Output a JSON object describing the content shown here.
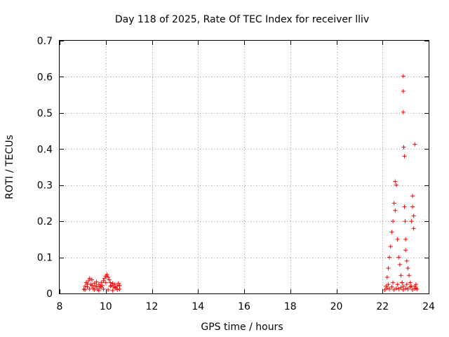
{
  "chart_data": {
    "type": "scatter",
    "title": "Day 118 of 2025, Rate Of TEC Index for receiver lliv",
    "xlabel": "GPS time / hours",
    "ylabel": "ROTI / TECUs",
    "xlim": [
      8,
      24
    ],
    "ylim": [
      0,
      0.7
    ],
    "xticks": [
      8,
      10,
      12,
      14,
      16,
      18,
      20,
      22,
      24
    ],
    "yticks": [
      0,
      0.1,
      0.2,
      0.3,
      0.4,
      0.5,
      0.6,
      0.7
    ],
    "grid": true,
    "marker": "plus",
    "color": "#ff0000",
    "series": [
      {
        "points": [
          [
            9.05,
            0.012
          ],
          [
            9.1,
            0.02
          ],
          [
            9.15,
            0.03
          ],
          [
            9.2,
            0.018
          ],
          [
            9.25,
            0.035
          ],
          [
            9.3,
            0.042
          ],
          [
            9.35,
            0.025
          ],
          [
            9.4,
            0.038
          ],
          [
            9.45,
            0.015
          ],
          [
            9.5,
            0.028
          ],
          [
            9.55,
            0.02
          ],
          [
            9.6,
            0.032
          ],
          [
            9.65,
            0.012
          ],
          [
            9.7,
            0.025
          ],
          [
            9.75,
            0.018
          ],
          [
            9.8,
            0.03
          ],
          [
            9.85,
            0.022
          ],
          [
            9.9,
            0.035
          ],
          [
            9.95,
            0.042
          ],
          [
            10.0,
            0.048
          ],
          [
            10.05,
            0.052
          ],
          [
            10.1,
            0.045
          ],
          [
            10.15,
            0.038
          ],
          [
            10.2,
            0.03
          ],
          [
            10.25,
            0.022
          ],
          [
            10.3,
            0.028
          ],
          [
            10.35,
            0.018
          ],
          [
            10.4,
            0.025
          ],
          [
            10.45,
            0.015
          ],
          [
            10.5,
            0.02
          ],
          [
            10.55,
            0.028
          ],
          [
            10.6,
            0.012
          ],
          [
            9.1,
            0.01
          ],
          [
            9.3,
            0.012
          ],
          [
            9.5,
            0.01
          ],
          [
            9.7,
            0.008
          ],
          [
            9.9,
            0.012
          ],
          [
            10.1,
            0.01
          ],
          [
            10.3,
            0.008
          ],
          [
            10.5,
            0.01
          ],
          [
            9.2,
            0.026
          ],
          [
            9.4,
            0.022
          ],
          [
            9.6,
            0.02
          ],
          [
            9.8,
            0.018
          ],
          [
            10.0,
            0.03
          ],
          [
            10.2,
            0.02
          ],
          [
            10.4,
            0.016
          ],
          [
            10.6,
            0.022
          ],
          [
            22.1,
            0.01
          ],
          [
            22.15,
            0.02
          ],
          [
            22.2,
            0.045
          ],
          [
            22.25,
            0.07
          ],
          [
            22.3,
            0.1
          ],
          [
            22.35,
            0.13
          ],
          [
            22.4,
            0.17
          ],
          [
            22.45,
            0.2
          ],
          [
            22.5,
            0.25
          ],
          [
            22.55,
            0.23
          ],
          [
            22.55,
            0.31
          ],
          [
            22.6,
            0.3
          ],
          [
            22.65,
            0.15
          ],
          [
            22.7,
            0.1
          ],
          [
            22.75,
            0.08
          ],
          [
            22.8,
            0.05
          ],
          [
            22.85,
            0.03
          ],
          [
            22.9,
            0.02
          ],
          [
            22.9,
            0.602
          ],
          [
            22.9,
            0.56
          ],
          [
            22.9,
            0.502
          ],
          [
            22.92,
            0.405
          ],
          [
            22.95,
            0.38
          ],
          [
            22.95,
            0.24
          ],
          [
            22.98,
            0.2
          ],
          [
            23.0,
            0.15
          ],
          [
            23.0,
            0.12
          ],
          [
            23.05,
            0.09
          ],
          [
            23.1,
            0.07
          ],
          [
            23.15,
            0.05
          ],
          [
            23.2,
            0.03
          ],
          [
            23.25,
            0.2
          ],
          [
            23.3,
            0.27
          ],
          [
            23.3,
            0.24
          ],
          [
            23.35,
            0.215
          ],
          [
            23.35,
            0.18
          ],
          [
            23.4,
            0.413
          ],
          [
            23.4,
            0.02
          ],
          [
            23.45,
            0.015
          ],
          [
            23.5,
            0.012
          ],
          [
            22.2,
            0.015
          ],
          [
            22.3,
            0.012
          ],
          [
            22.4,
            0.018
          ],
          [
            22.5,
            0.01
          ],
          [
            22.6,
            0.014
          ],
          [
            22.7,
            0.012
          ],
          [
            22.8,
            0.016
          ],
          [
            22.9,
            0.01
          ],
          [
            23.0,
            0.014
          ],
          [
            23.1,
            0.012
          ],
          [
            23.2,
            0.018
          ],
          [
            23.3,
            0.01
          ],
          [
            23.4,
            0.014
          ],
          [
            22.25,
            0.025
          ],
          [
            22.45,
            0.03
          ],
          [
            22.65,
            0.025
          ],
          [
            22.85,
            0.03
          ],
          [
            23.05,
            0.025
          ],
          [
            23.25,
            0.02
          ],
          [
            23.45,
            0.025
          ]
        ]
      }
    ]
  }
}
